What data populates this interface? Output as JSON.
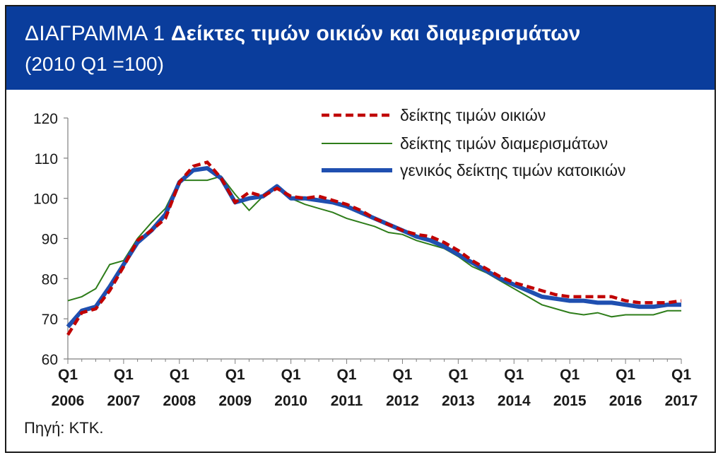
{
  "header": {
    "label": "ΔΙΑΓΡΑΜΜΑ 1",
    "title": "Δείκτες τιμών οικιών και διαμερισμάτων",
    "subtitle": "(2010 Q1 =100)"
  },
  "source": "Πηγή: ΚΤΚ.",
  "colors": {
    "header_bg": "#0a3d9c",
    "houses": "#c00000",
    "apartments": "#2e7d1a",
    "general": "#1f4fb0"
  },
  "chart_data": {
    "type": "line",
    "title": "Δείκτες τιμών οικιών και διαμερισμάτων",
    "subtitle": "(2010 Q1 =100)",
    "xlabel": "",
    "ylabel": "",
    "ylim": [
      60,
      120
    ],
    "yticks": [
      60,
      70,
      80,
      90,
      100,
      110,
      120
    ],
    "grid": false,
    "legend_position": "top-right",
    "x_ticks": [
      {
        "q": "Q1",
        "year": "2006"
      },
      {
        "q": "Q1",
        "year": "2007"
      },
      {
        "q": "Q1",
        "year": "2008"
      },
      {
        "q": "Q1",
        "year": "2009"
      },
      {
        "q": "Q1",
        "year": "2010"
      },
      {
        "q": "Q1",
        "year": "2011"
      },
      {
        "q": "Q1",
        "year": "2012"
      },
      {
        "q": "Q1",
        "year": "2013"
      },
      {
        "q": "Q1",
        "year": "2014"
      },
      {
        "q": "Q1",
        "year": "2015"
      },
      {
        "q": "Q1",
        "year": "2016"
      },
      {
        "q": "Q1",
        "year": "2017"
      }
    ],
    "series": [
      {
        "name": "δείκτης τιμών οικιών",
        "style": "dashed",
        "values": [
          66,
          71.5,
          72.5,
          77,
          83,
          89.5,
          92,
          95,
          104,
          108,
          109,
          105,
          99,
          101.5,
          100.5,
          102.5,
          100.5,
          100,
          100.5,
          99.5,
          98.5,
          97,
          95,
          93.5,
          92,
          91,
          90.5,
          89,
          87,
          84.5,
          82.5,
          80.5,
          79,
          78,
          77,
          76,
          75.5,
          75.5,
          75.5,
          75.5,
          74.5,
          74,
          74,
          74,
          74.5
        ]
      },
      {
        "name": "δείκτης τιμών διαμερισμάτων",
        "style": "thin",
        "values": [
          74.5,
          75.5,
          77.5,
          83.5,
          84.5,
          90,
          94,
          97.5,
          104.5,
          104.5,
          104.5,
          105.5,
          101,
          97,
          100.5,
          102.5,
          100,
          98.5,
          97.5,
          96.5,
          95,
          94,
          93,
          91.5,
          91,
          89.5,
          88.5,
          87.5,
          85.5,
          83,
          81.5,
          79.5,
          77.5,
          75.5,
          73.5,
          72.5,
          71.5,
          71,
          71.5,
          70.5,
          71,
          71,
          71,
          72,
          72
        ]
      },
      {
        "name": "γενικός δείκτης τιμών κατοικιών",
        "style": "thick",
        "values": [
          68,
          72,
          73,
          78,
          83.5,
          89,
          92,
          96,
          104,
          107,
          107.5,
          105,
          99,
          100,
          100.5,
          103,
          100,
          100,
          99.5,
          99,
          98,
          96.5,
          95,
          93.5,
          92,
          90.5,
          89.5,
          88,
          86,
          84,
          82,
          80,
          78.5,
          77,
          75.5,
          75,
          74.5,
          74.5,
          74,
          74,
          73.5,
          73,
          73,
          73.5,
          73.5
        ]
      }
    ]
  }
}
